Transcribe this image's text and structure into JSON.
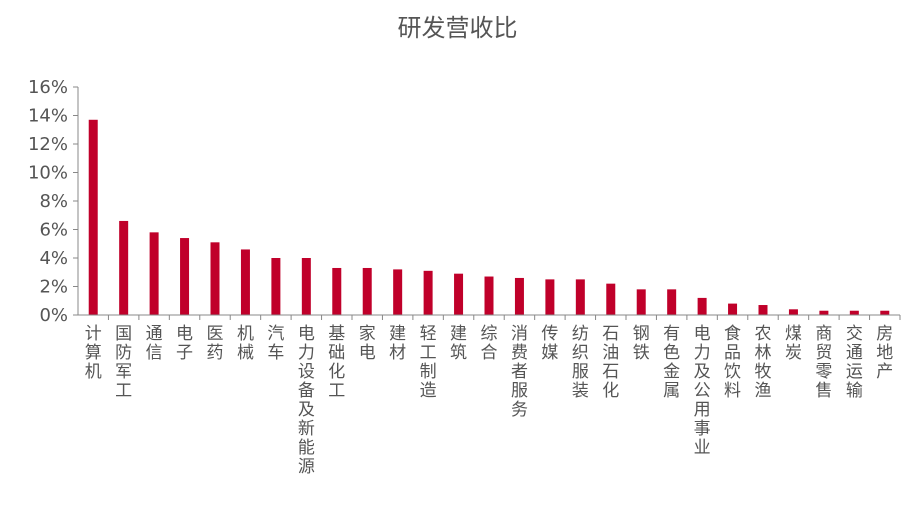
{
  "chart_data": {
    "type": "bar",
    "title": "研发营收比",
    "xlabel": "",
    "ylabel": "",
    "ylim": [
      0,
      16
    ],
    "yticks": [
      "0%",
      "2%",
      "4%",
      "6%",
      "8%",
      "10%",
      "12%",
      "14%",
      "16%"
    ],
    "grid": false,
    "bar_color": "#C0002A",
    "categories": [
      "计算机",
      "国防军工",
      "通信",
      "电子",
      "医药",
      "机械",
      "汽车",
      "电力设备及新能源",
      "基础化工",
      "家电",
      "建材",
      "轻工制造",
      "建筑",
      "综合",
      "消费者服务",
      "传媒",
      "纺织服装",
      "石油石化",
      "钢铁",
      "有色金属",
      "电力及公用事业",
      "食品饮料",
      "农林牧渔",
      "煤炭",
      "商贸零售",
      "交通运输",
      "房地产"
    ],
    "values": [
      13.7,
      6.6,
      5.8,
      5.4,
      5.1,
      4.6,
      4.0,
      4.0,
      3.3,
      3.3,
      3.2,
      3.1,
      2.9,
      2.7,
      2.6,
      2.5,
      2.5,
      2.2,
      1.8,
      1.8,
      1.2,
      0.8,
      0.7,
      0.4,
      0.3,
      0.3,
      0.3
    ]
  }
}
